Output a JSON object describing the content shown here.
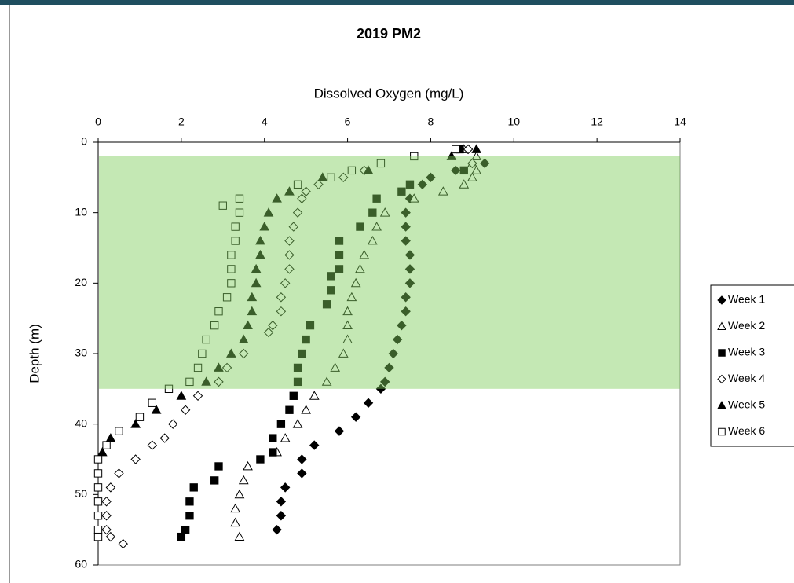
{
  "chart_data": {
    "type": "scatter",
    "title": "2019 PM2",
    "x_label": "Dissolved Oxygen (mg/L)",
    "y_label": "Depth (m)",
    "x_axis_position": "top",
    "y_inverted": true,
    "xlim": [
      0,
      14
    ],
    "ylim": [
      0,
      60
    ],
    "xticks": [
      0,
      2,
      4,
      6,
      8,
      10,
      12,
      14
    ],
    "yticks": [
      0,
      10,
      20,
      30,
      40,
      50,
      60
    ],
    "legend": "right",
    "bands": [
      {
        "ylim": [
          2,
          35
        ],
        "color": "#7ecc5b"
      }
    ],
    "series": [
      {
        "name": "Week 1",
        "marker": "diamond",
        "filled": true,
        "color": "#000000",
        "x": [
          8.9,
          9.3,
          8.6,
          8.0,
          7.8,
          7.5,
          7.4,
          7.4,
          7.4,
          7.5,
          7.5,
          7.5,
          7.4,
          7.4,
          7.3,
          7.2,
          7.1,
          7.0,
          6.9,
          6.8,
          6.5,
          6.2,
          5.8,
          5.2,
          4.9,
          4.9,
          4.5,
          4.4,
          4.4,
          4.3
        ],
        "values": [
          1,
          3,
          4,
          5,
          6,
          8,
          10,
          12,
          14,
          16,
          18,
          20,
          22,
          24,
          26,
          28,
          30,
          32,
          34,
          35,
          37,
          39,
          41,
          43,
          45,
          47,
          49,
          51,
          53,
          55
        ]
      },
      {
        "name": "Week 2",
        "marker": "triangle",
        "filled": false,
        "color": "#000000",
        "x": [
          8.8,
          9.1,
          9.0,
          9.1,
          9.0,
          8.8,
          8.3,
          7.6,
          6.9,
          6.7,
          6.6,
          6.4,
          6.3,
          6.2,
          6.1,
          6.0,
          6.0,
          6.0,
          5.9,
          5.7,
          5.5,
          5.2,
          5.0,
          4.8,
          4.5,
          4.3,
          3.6,
          3.5,
          3.4,
          3.3,
          3.3,
          3.4
        ],
        "values": [
          1,
          2,
          3,
          4,
          5,
          6,
          7,
          8,
          10,
          12,
          14,
          16,
          18,
          20,
          22,
          24,
          26,
          28,
          30,
          32,
          34,
          36,
          38,
          40,
          42,
          44,
          46,
          48,
          50,
          52,
          54,
          56
        ]
      },
      {
        "name": "Week 3",
        "marker": "square",
        "filled": true,
        "color": "#000000",
        "x": [
          8.7,
          8.8,
          7.5,
          7.3,
          6.7,
          6.6,
          6.3,
          5.8,
          5.8,
          5.8,
          5.6,
          5.6,
          5.5,
          5.1,
          5.0,
          4.9,
          4.8,
          4.8,
          4.7,
          4.6,
          4.4,
          4.2,
          4.2,
          3.9,
          2.9,
          2.8,
          2.3,
          2.2,
          2.2,
          2.1,
          2.0
        ],
        "values": [
          1,
          4,
          6,
          7,
          8,
          10,
          12,
          14,
          16,
          18,
          19,
          21,
          23,
          26,
          28,
          30,
          32,
          34,
          36,
          38,
          40,
          42,
          44,
          45,
          46,
          48,
          49,
          51,
          53,
          55,
          56
        ]
      },
      {
        "name": "Week 4",
        "marker": "diamond",
        "filled": false,
        "color": "#000000",
        "x": [
          8.9,
          9.0,
          6.4,
          5.9,
          5.3,
          5.0,
          4.9,
          4.8,
          4.7,
          4.6,
          4.6,
          4.6,
          4.5,
          4.4,
          4.4,
          4.2,
          4.1,
          3.5,
          3.1,
          2.9,
          2.4,
          2.1,
          1.8,
          1.6,
          1.3,
          0.9,
          0.5,
          0.3,
          0.2,
          0.2,
          0.2,
          0.3,
          0.6
        ],
        "values": [
          1,
          3,
          4,
          5,
          6,
          7,
          8,
          10,
          12,
          14,
          16,
          18,
          20,
          22,
          24,
          26,
          27,
          30,
          32,
          34,
          36,
          38,
          40,
          42,
          43,
          45,
          47,
          49,
          51,
          53,
          55,
          56,
          57
        ]
      },
      {
        "name": "Week 5",
        "marker": "triangle",
        "filled": true,
        "color": "#000000",
        "x": [
          9.1,
          8.5,
          6.5,
          5.4,
          4.6,
          4.3,
          4.1,
          4.0,
          3.9,
          3.9,
          3.8,
          3.8,
          3.7,
          3.7,
          3.6,
          3.5,
          3.2,
          2.9,
          2.6,
          2.0,
          1.4,
          0.9,
          0.3,
          0.1
        ],
        "values": [
          1,
          2,
          4,
          5,
          7,
          8,
          10,
          12,
          14,
          16,
          18,
          20,
          22,
          24,
          26,
          28,
          30,
          32,
          34,
          36,
          38,
          40,
          42,
          44
        ]
      },
      {
        "name": "Week 6",
        "marker": "square",
        "filled": false,
        "color": "#000000",
        "x": [
          8.6,
          7.6,
          6.8,
          6.1,
          5.6,
          4.8,
          3.4,
          3.0,
          3.4,
          3.3,
          3.3,
          3.2,
          3.2,
          3.2,
          3.1,
          2.9,
          2.8,
          2.6,
          2.5,
          2.4,
          2.2,
          1.7,
          1.3,
          1.0,
          0.5,
          0.2,
          0,
          0,
          0,
          0,
          0,
          0,
          0
        ],
        "values": [
          1,
          2,
          3,
          4,
          5,
          6,
          8,
          9,
          10,
          12,
          14,
          16,
          18,
          20,
          22,
          24,
          26,
          28,
          30,
          32,
          34,
          35,
          37,
          39,
          41,
          43,
          45,
          47,
          49,
          51,
          53,
          55,
          56
        ]
      }
    ]
  }
}
